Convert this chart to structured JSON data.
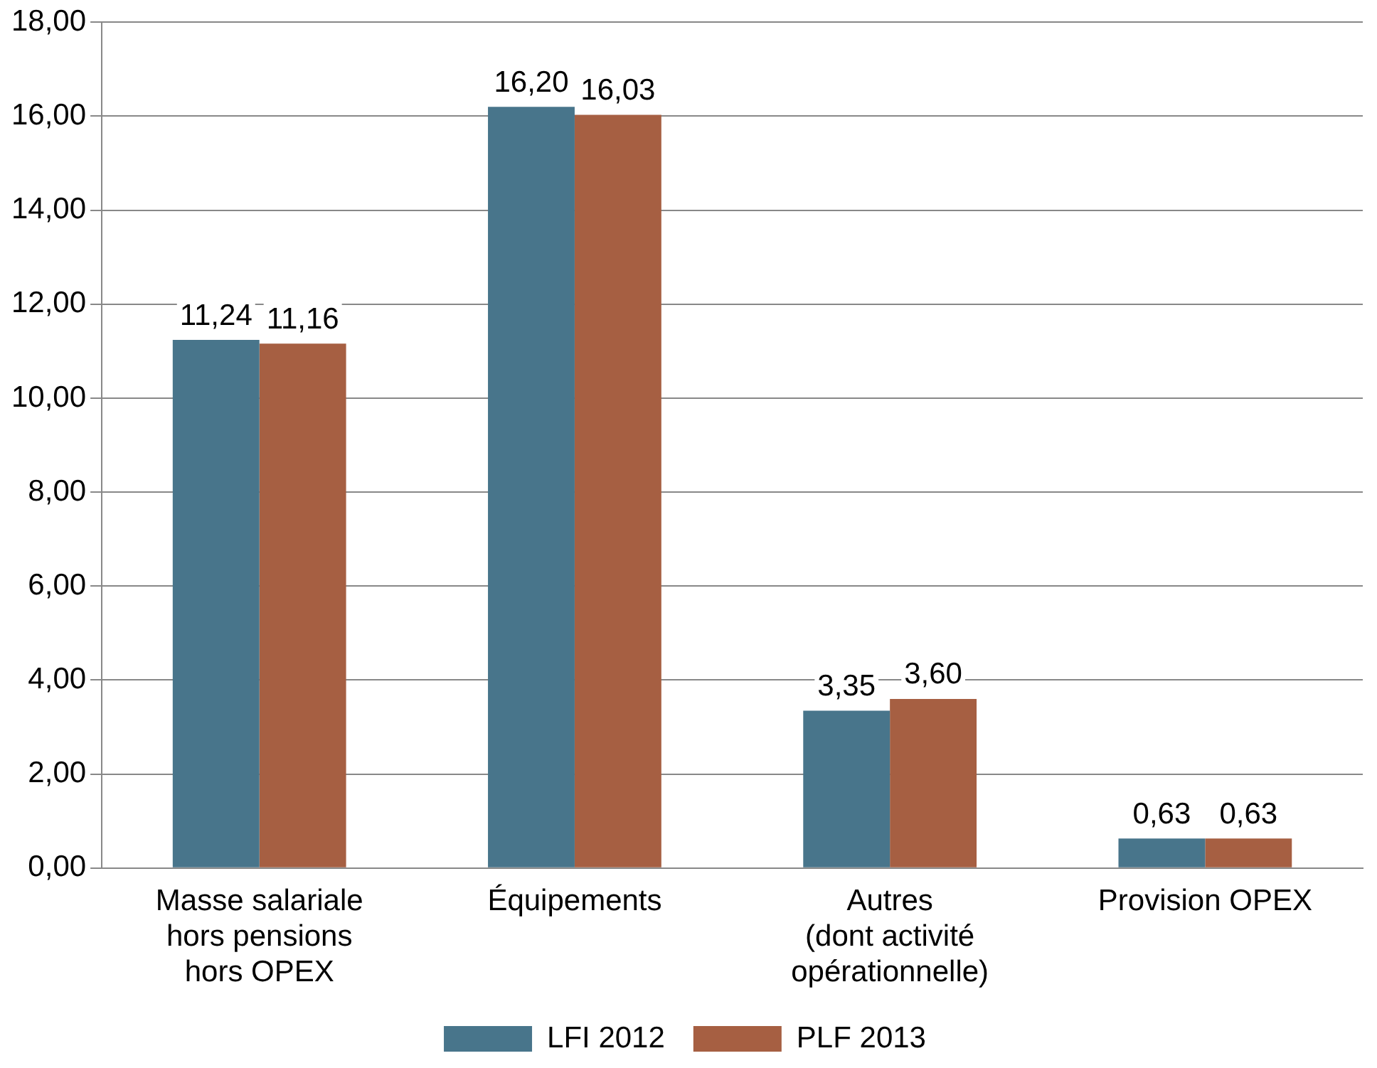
{
  "chart_data": {
    "type": "bar",
    "categories": [
      "Masse salariale\nhors pensions\nhors OPEX",
      "Équipements",
      "Autres\n(dont activité\nopérationnelle)",
      "Provision OPEX"
    ],
    "series": [
      {
        "name": "LFI 2012",
        "color": "#48758b",
        "values": [
          11.24,
          16.2,
          3.35,
          0.63
        ],
        "value_labels": [
          "11,24",
          "16,20",
          "3,35",
          "0,63"
        ]
      },
      {
        "name": "PLF 2013",
        "color": "#a65f42",
        "values": [
          11.16,
          16.03,
          3.6,
          0.63
        ],
        "value_labels": [
          "11,16",
          "16,03",
          "3,60",
          "0,63"
        ]
      }
    ],
    "ylim": [
      0,
      18
    ],
    "yticks": [
      {
        "value": 0,
        "label": "0,00"
      },
      {
        "value": 2,
        "label": "2,00"
      },
      {
        "value": 4,
        "label": "4,00"
      },
      {
        "value": 6,
        "label": "6,00"
      },
      {
        "value": 8,
        "label": "8,00"
      },
      {
        "value": 10,
        "label": "10,00"
      },
      {
        "value": 12,
        "label": "12,00"
      },
      {
        "value": 14,
        "label": "14,00"
      },
      {
        "value": 16,
        "label": "16,00"
      },
      {
        "value": 18,
        "label": "18,00"
      }
    ],
    "grid": "y",
    "legend": "bottom"
  }
}
